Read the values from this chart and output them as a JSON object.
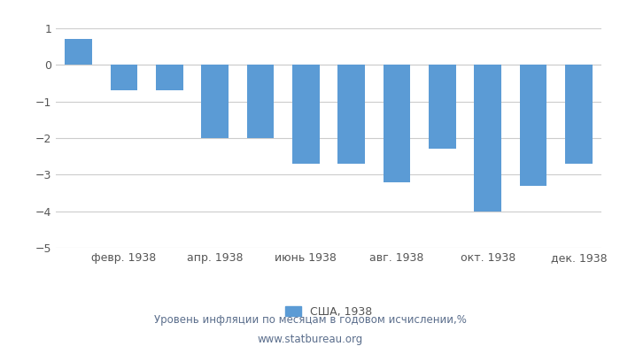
{
  "months": [
    1,
    2,
    3,
    4,
    5,
    6,
    7,
    8,
    9,
    10,
    11,
    12
  ],
  "values": [
    0.7,
    -0.7,
    -0.7,
    -2.0,
    -2.0,
    -2.7,
    -2.7,
    -3.2,
    -2.3,
    -4.0,
    -3.3,
    -2.7
  ],
  "bar_color": "#5b9bd5",
  "xlim": [
    0.5,
    12.5
  ],
  "ylim": [
    -5,
    1
  ],
  "yticks": [
    -5,
    -4,
    -3,
    -2,
    -1,
    0,
    1
  ],
  "xtick_positions": [
    2,
    4,
    6,
    8,
    10,
    12
  ],
  "xtick_labels": [
    "февр. 1938",
    "апр. 1938",
    "июнь 1938",
    "авг. 1938",
    "окт. 1938",
    "дек. 1938"
  ],
  "legend_label": "США, 1938",
  "footer_line1": "Уровень инфляции по месяцам в годовом исчислении,%",
  "footer_line2": "www.statbureau.org",
  "background_color": "#ffffff",
  "grid_color": "#cccccc",
  "text_color": "#555555",
  "footer_color": "#5b6e8c",
  "bar_width": 0.6
}
